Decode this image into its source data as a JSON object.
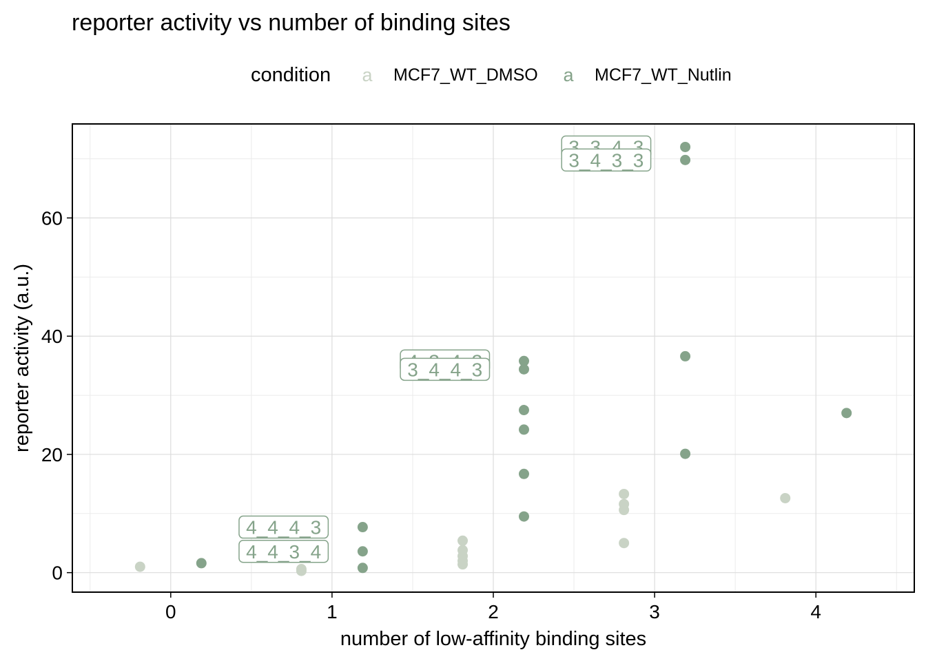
{
  "chart_data": {
    "type": "scatter",
    "title": "reporter activity vs number of binding sites",
    "xlabel": "number of low-affinity binding sites",
    "ylabel": "reporter activity (a.u.)",
    "xlim": [
      -0.61,
      4.61
    ],
    "ylim": [
      -3.3,
      75.9
    ],
    "x_ticks": [
      0,
      1,
      2,
      3,
      4
    ],
    "y_ticks": [
      0,
      20,
      40,
      60
    ],
    "grid": true,
    "legend": {
      "title": "condition",
      "position": "top",
      "key_glyph": "a",
      "entries": [
        {
          "name": "MCF7_WT_DMSO",
          "color": "#c9d3c5"
        },
        {
          "name": "MCF7_WT_Nutlin",
          "color": "#85a38a"
        }
      ]
    },
    "series": [
      {
        "name": "MCF7_WT_DMSO",
        "color": "#c9d3c5",
        "points": [
          {
            "x": -0.19,
            "y": 1.0
          },
          {
            "x": 0.81,
            "y": 0.3
          },
          {
            "x": 0.81,
            "y": 0.6
          },
          {
            "x": 1.81,
            "y": 5.4
          },
          {
            "x": 1.81,
            "y": 3.8
          },
          {
            "x": 1.81,
            "y": 2.8
          },
          {
            "x": 1.81,
            "y": 2.0
          },
          {
            "x": 1.81,
            "y": 1.4
          },
          {
            "x": 2.81,
            "y": 13.3
          },
          {
            "x": 2.81,
            "y": 11.6
          },
          {
            "x": 2.81,
            "y": 10.6
          },
          {
            "x": 2.81,
            "y": 5.0
          },
          {
            "x": 3.81,
            "y": 12.6
          }
        ]
      },
      {
        "name": "MCF7_WT_Nutlin",
        "color": "#85a38a",
        "points": [
          {
            "x": 0.19,
            "y": 1.6
          },
          {
            "x": 1.19,
            "y": 7.7
          },
          {
            "x": 1.19,
            "y": 3.6
          },
          {
            "x": 1.19,
            "y": 0.8
          },
          {
            "x": 2.19,
            "y": 35.8
          },
          {
            "x": 2.19,
            "y": 34.4
          },
          {
            "x": 2.19,
            "y": 27.5
          },
          {
            "x": 2.19,
            "y": 24.2
          },
          {
            "x": 2.19,
            "y": 16.7
          },
          {
            "x": 2.19,
            "y": 9.5
          },
          {
            "x": 3.19,
            "y": 72.0
          },
          {
            "x": 3.19,
            "y": 69.8
          },
          {
            "x": 3.19,
            "y": 36.6
          },
          {
            "x": 3.19,
            "y": 20.1
          },
          {
            "x": 4.19,
            "y": 27.0
          }
        ]
      }
    ],
    "annotations": [
      {
        "text": "4_4_4_3",
        "x": 0.7,
        "y": 7.7,
        "color": "#85a38a"
      },
      {
        "text": "4_4_3_4",
        "x": 0.7,
        "y": 3.6,
        "color": "#85a38a"
      },
      {
        "text": "4_3_4_3",
        "x": 1.7,
        "y": 35.8,
        "color": "#85a38a"
      },
      {
        "text": "3_4_4_3",
        "x": 1.7,
        "y": 34.4,
        "color": "#85a38a"
      },
      {
        "text": "3_3_4_3",
        "x": 2.7,
        "y": 72.0,
        "color": "#85a38a"
      },
      {
        "text": "3_4_3_3",
        "x": 2.7,
        "y": 69.8,
        "color": "#85a38a"
      }
    ]
  }
}
